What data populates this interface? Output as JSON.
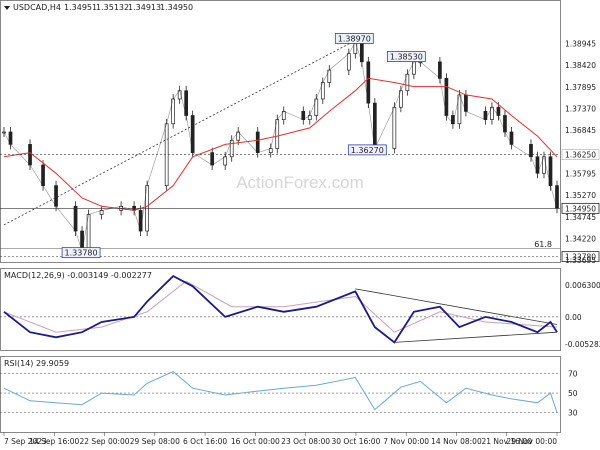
{
  "watermark": "ActionForex.com",
  "chart_data": [
    {
      "type": "candlestick",
      "title": "USDCAD,H4",
      "ohlc": [
        "1.34951",
        "1.35132",
        "1.34913",
        "1.34950"
      ],
      "ylim": [
        1.3365,
        1.3995
      ],
      "y_ticks": [
        "1.38945",
        "1.38420",
        "1.37895",
        "1.37370",
        "1.36845",
        "1.36250",
        "1.35795",
        "1.35270",
        "1.34950",
        "1.34745",
        "1.34220",
        "1.33780",
        "1.33695"
      ],
      "highlighted_levels": [
        {
          "label": "1.36250",
          "value": 1.3625,
          "style": "dashed"
        },
        {
          "label": "1.34950",
          "value": 1.3495,
          "style": "current",
          "box": "dark"
        },
        {
          "label": "1.33780",
          "value": 1.3378,
          "style": "dashed",
          "box": "dark"
        }
      ],
      "fib_label": "61.8",
      "fib_value": 1.3398,
      "annotations": [
        {
          "label": "1.38970",
          "x": "2023-10-31",
          "y": 1.3897
        },
        {
          "label": "1.38530",
          "x": "2023-11-08",
          "y": 1.3853
        },
        {
          "label": "1.36270",
          "x": "2023-11-02",
          "y": 1.3627
        },
        {
          "label": "1.33780",
          "x": "2023-09-19",
          "y": 1.3378
        }
      ],
      "trend_line": [
        {
          "x": "2023-09-07",
          "y": 1.3455
        },
        {
          "x": "2023-11-01",
          "y": 1.391
        }
      ],
      "price_path": [
        [
          "2023-09-07",
          1.368
        ],
        [
          "2023-09-08",
          1.365
        ],
        [
          "2023-09-11",
          1.36
        ],
        [
          "2023-09-13",
          1.355
        ],
        [
          "2023-09-15",
          1.35
        ],
        [
          "2023-09-18",
          1.344
        ],
        [
          "2023-09-19",
          1.339
        ],
        [
          "2023-09-20",
          1.348
        ],
        [
          "2023-09-22",
          1.349
        ],
        [
          "2023-09-25",
          1.35
        ],
        [
          "2023-09-27",
          1.349
        ],
        [
          "2023-09-28",
          1.344
        ],
        [
          "2023-09-29",
          1.355
        ],
        [
          "2023-10-02",
          1.37
        ],
        [
          "2023-10-03",
          1.376
        ],
        [
          "2023-10-04",
          1.378
        ],
        [
          "2023-10-05",
          1.372
        ],
        [
          "2023-10-06",
          1.363
        ],
        [
          "2023-10-09",
          1.36
        ],
        [
          "2023-10-11",
          1.362
        ],
        [
          "2023-10-12",
          1.366
        ],
        [
          "2023-10-13",
          1.368
        ],
        [
          "2023-10-16",
          1.363
        ],
        [
          "2023-10-18",
          1.364
        ],
        [
          "2023-10-19",
          1.371
        ],
        [
          "2023-10-20",
          1.373
        ],
        [
          "2023-10-23",
          1.371
        ],
        [
          "2023-10-24",
          1.372
        ],
        [
          "2023-10-25",
          1.376
        ],
        [
          "2023-10-26",
          1.38
        ],
        [
          "2023-10-27",
          1.383
        ],
        [
          "2023-10-30",
          1.387
        ],
        [
          "2023-10-31",
          1.3897
        ],
        [
          "2023-11-01",
          1.385
        ],
        [
          "2023-11-02",
          1.375
        ],
        [
          "2023-11-03",
          1.364
        ],
        [
          "2023-11-06",
          1.374
        ],
        [
          "2023-11-07",
          1.378
        ],
        [
          "2023-11-08",
          1.382
        ],
        [
          "2023-11-09",
          1.385
        ],
        [
          "2023-11-10",
          1.385
        ],
        [
          "2023-11-13",
          1.381
        ],
        [
          "2023-11-14",
          1.372
        ],
        [
          "2023-11-15",
          1.37
        ],
        [
          "2023-11-16",
          1.377
        ],
        [
          "2023-11-17",
          1.373
        ],
        [
          "2023-11-20",
          1.371
        ],
        [
          "2023-11-21",
          1.374
        ],
        [
          "2023-11-22",
          1.372
        ],
        [
          "2023-11-23",
          1.368
        ],
        [
          "2023-11-24",
          1.365
        ],
        [
          "2023-11-27",
          1.362
        ],
        [
          "2023-11-28",
          1.358
        ],
        [
          "2023-11-29",
          1.362
        ],
        [
          "2023-11-30",
          1.355
        ],
        [
          "2023-12-01",
          1.3495
        ]
      ],
      "ma_path": [
        [
          "2023-09-07",
          1.362
        ],
        [
          "2023-09-11",
          1.363
        ],
        [
          "2023-09-15",
          1.358
        ],
        [
          "2023-09-19",
          1.352
        ],
        [
          "2023-09-22",
          1.35
        ],
        [
          "2023-09-27",
          1.349
        ],
        [
          "2023-09-29",
          1.35
        ],
        [
          "2023-10-03",
          1.355
        ],
        [
          "2023-10-06",
          1.362
        ],
        [
          "2023-10-11",
          1.365
        ],
        [
          "2023-10-16",
          1.366
        ],
        [
          "2023-10-19",
          1.367
        ],
        [
          "2023-10-24",
          1.369
        ],
        [
          "2023-10-27",
          1.373
        ],
        [
          "2023-10-31",
          1.378
        ],
        [
          "2023-11-02",
          1.381
        ],
        [
          "2023-11-06",
          1.38
        ],
        [
          "2023-11-09",
          1.379
        ],
        [
          "2023-11-14",
          1.379
        ],
        [
          "2023-11-17",
          1.377
        ],
        [
          "2023-11-21",
          1.376
        ],
        [
          "2023-11-24",
          1.372
        ],
        [
          "2023-11-28",
          1.367
        ],
        [
          "2023-12-01",
          1.362
        ]
      ]
    },
    {
      "type": "line",
      "title": "MACD(12,26,9) -0.003149 -0.002277",
      "ylim": [
        -0.0065,
        0.0092
      ],
      "y_ticks": [
        "0.006300",
        "0.00",
        "-0.005283"
      ],
      "macd_path": [
        [
          "2023-09-07",
          0.001
        ],
        [
          "2023-09-11",
          -0.003
        ],
        [
          "2023-09-15",
          -0.004
        ],
        [
          "2023-09-19",
          -0.003
        ],
        [
          "2023-09-22",
          -0.001
        ],
        [
          "2023-09-27",
          0.0
        ],
        [
          "2023-09-29",
          0.003
        ],
        [
          "2023-10-03",
          0.008
        ],
        [
          "2023-10-06",
          0.006
        ],
        [
          "2023-10-11",
          0.0
        ],
        [
          "2023-10-16",
          0.002
        ],
        [
          "2023-10-20",
          0.001
        ],
        [
          "2023-10-25",
          0.002
        ],
        [
          "2023-10-31",
          0.005
        ],
        [
          "2023-11-03",
          -0.002
        ],
        [
          "2023-11-06",
          -0.005
        ],
        [
          "2023-11-09",
          0.001
        ],
        [
          "2023-11-13",
          0.002
        ],
        [
          "2023-11-16",
          -0.002
        ],
        [
          "2023-11-20",
          0.0
        ],
        [
          "2023-11-24",
          -0.001
        ],
        [
          "2023-11-28",
          -0.003
        ],
        [
          "2023-11-30",
          -0.001
        ],
        [
          "2023-12-01",
          -0.003
        ]
      ],
      "signal_path": [
        [
          "2023-09-07",
          0.001
        ],
        [
          "2023-09-15",
          -0.003
        ],
        [
          "2023-09-22",
          -0.002
        ],
        [
          "2023-09-29",
          0.001
        ],
        [
          "2023-10-05",
          0.007
        ],
        [
          "2023-10-12",
          0.002
        ],
        [
          "2023-10-20",
          0.002
        ],
        [
          "2023-10-31",
          0.004
        ],
        [
          "2023-11-06",
          -0.003
        ],
        [
          "2023-11-13",
          0.001
        ],
        [
          "2023-11-20",
          -0.001
        ],
        [
          "2023-12-01",
          -0.002
        ]
      ],
      "triangle": [
        [
          [
            "2023-10-31",
            0.0055
          ],
          [
            "2023-12-01",
            -0.0015
          ]
        ],
        [
          [
            "2023-11-06",
            -0.005
          ],
          [
            "2023-12-01",
            -0.003
          ]
        ]
      ]
    },
    {
      "type": "line",
      "title": "RSI(14) 29.9059",
      "ylim": [
        10,
        86
      ],
      "y_ticks": [
        "70",
        "50",
        "30"
      ],
      "rsi_path": [
        [
          "2023-09-07",
          55
        ],
        [
          "2023-09-11",
          42
        ],
        [
          "2023-09-15",
          40
        ],
        [
          "2023-09-19",
          38
        ],
        [
          "2023-09-22",
          50
        ],
        [
          "2023-09-27",
          48
        ],
        [
          "2023-09-29",
          60
        ],
        [
          "2023-10-03",
          72
        ],
        [
          "2023-10-06",
          55
        ],
        [
          "2023-10-11",
          48
        ],
        [
          "2023-10-16",
          52
        ],
        [
          "2023-10-20",
          55
        ],
        [
          "2023-10-25",
          58
        ],
        [
          "2023-10-31",
          66
        ],
        [
          "2023-11-03",
          33
        ],
        [
          "2023-11-07",
          56
        ],
        [
          "2023-11-10",
          62
        ],
        [
          "2023-11-14",
          40
        ],
        [
          "2023-11-17",
          55
        ],
        [
          "2023-11-21",
          48
        ],
        [
          "2023-11-24",
          44
        ],
        [
          "2023-11-28",
          40
        ],
        [
          "2023-11-30",
          50
        ],
        [
          "2023-12-01",
          30
        ]
      ]
    }
  ],
  "x_ticks": [
    "7 Sep 2023",
    "14 Sep 16:00",
    "22 Sep 00:00",
    "29 Sep 08:00",
    "6 Oct 16:00",
    "16 Oct 00:00",
    "23 Oct 08:00",
    "30 Oct 16:00",
    "7 Nov 00:00",
    "14 Nov 08:00",
    "21 Nov 16:00",
    "29 Nov 00:00"
  ],
  "colors": {
    "candle": "#222222",
    "ma": "#e03030",
    "macd": "#1a1a8c",
    "signal": "#c8a0b8",
    "rsi": "#6aa8d8",
    "box_fill": "#eef1fb",
    "box_border": "#3344aa"
  }
}
